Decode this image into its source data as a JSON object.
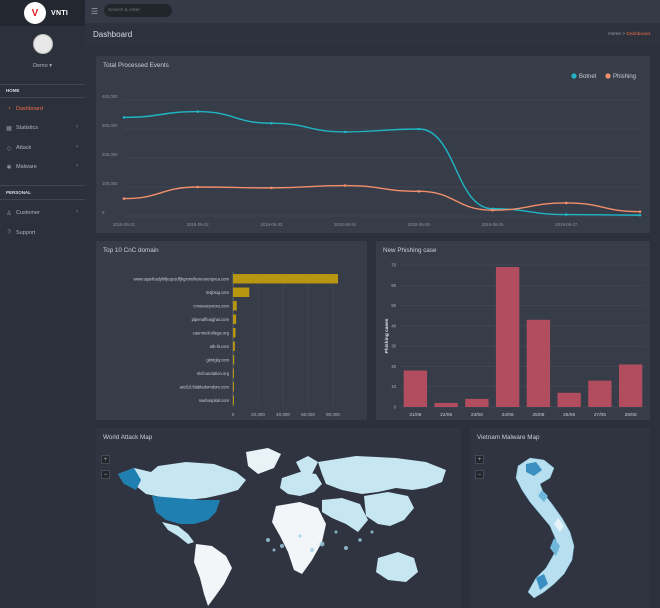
{
  "brand": {
    "logo_text": "V",
    "name": "VNTI"
  },
  "user": {
    "name": "Demo"
  },
  "search": {
    "placeholder": "Search & enter"
  },
  "sidebar": {
    "section_home": "HOME",
    "section_personal": "PERSONAL",
    "items": [
      {
        "label": "Dashboard",
        "icon": "dashboard-icon"
      },
      {
        "label": "Statistics",
        "icon": "chart-icon"
      },
      {
        "label": "Attack",
        "icon": "attack-icon"
      },
      {
        "label": "Malware",
        "icon": "bug-icon"
      },
      {
        "label": "Customer",
        "icon": "user-icon"
      },
      {
        "label": "Support",
        "icon": "help-icon"
      }
    ]
  },
  "page": {
    "title": "Dashboard",
    "breadcrumb_home": "Home",
    "breadcrumb_current": "Dashboard"
  },
  "events_card": {
    "title": "Total Processed Events"
  },
  "cnc_card": {
    "title": "Top 10 CnC domain"
  },
  "phishing_card": {
    "title": "New Phishing case"
  },
  "world_map": {
    "title": "World Attack Map",
    "zoom_in": "+",
    "zoom_out": "−"
  },
  "vn_map": {
    "title": "Vietnam Malware Map",
    "zoom_in": "+",
    "zoom_out": "−"
  },
  "colors": {
    "botnet": "#1fb5c4",
    "phishing": "#f28e6b",
    "cnc_bar": "#b8960f",
    "phish_bar": "#b24c5f",
    "accent": "#f06c4b"
  },
  "chart_data": [
    {
      "type": "line",
      "title": "Total Processed Events",
      "x": [
        "2018-06-21",
        "2018-06-22",
        "2018-06-23",
        "2018-06-24",
        "2018-06-25",
        "2018-06-26",
        "2018-06-27",
        "2018-06-28"
      ],
      "x_labels": [
        "2018-06-21",
        "2018-06-22",
        "2018-06-23",
        "2018-06-24",
        "2018-06-25",
        "2018-06-26",
        "2018-06-27"
      ],
      "ylim": [
        0,
        400000
      ],
      "y_ticks": [
        0,
        100000,
        200000,
        300000,
        400000
      ],
      "y_tick_labels": [
        "0",
        "100,000",
        "200,000",
        "300,000",
        "400,000"
      ],
      "legend_position": "top-right",
      "series": [
        {
          "name": "Botnet",
          "values": [
            340000,
            360000,
            320000,
            290000,
            300000,
            25000,
            5000,
            3000
          ]
        },
        {
          "name": "Phishing",
          "values": [
            60000,
            100000,
            97000,
            105000,
            85000,
            20000,
            45000,
            15000
          ]
        }
      ]
    },
    {
      "type": "bar",
      "orientation": "horizontal",
      "title": "Top 10 CnC domain",
      "categories": [
        "www.uqarfcadyhifjeqcodfjhgxmufieneneerqxea.com",
        "msjbsig.com",
        "cmoeweyxnxu.com",
        "plpenaffeaighai.com",
        "caenmelcollege.org",
        "atb-lit.com",
        "gkntglq.com",
        "nlcfoundation.org",
        "and10.blabladomdom.com",
        "nashospital.com"
      ],
      "values": [
        84000,
        13000,
        3000,
        2500,
        2000,
        1500,
        1000,
        800,
        600,
        500
      ],
      "xlim": [
        0,
        100000
      ],
      "x_ticks": [
        0,
        20000,
        40000,
        60000,
        80000
      ],
      "x_tick_labels": [
        "0",
        "20,000",
        "40,000",
        "60,000",
        "80,000"
      ]
    },
    {
      "type": "bar",
      "title": "New Phishing case",
      "categories": [
        "21/06",
        "22/06",
        "23/06",
        "24/06",
        "25/06",
        "26/06",
        "27/06",
        "28/06"
      ],
      "values": [
        18,
        2,
        4,
        69,
        43,
        7,
        13,
        21
      ],
      "ylabel": "Phishing cases",
      "ylim": [
        0,
        70
      ],
      "y_ticks": [
        0,
        10,
        20,
        30,
        40,
        50,
        60,
        70
      ]
    }
  ]
}
